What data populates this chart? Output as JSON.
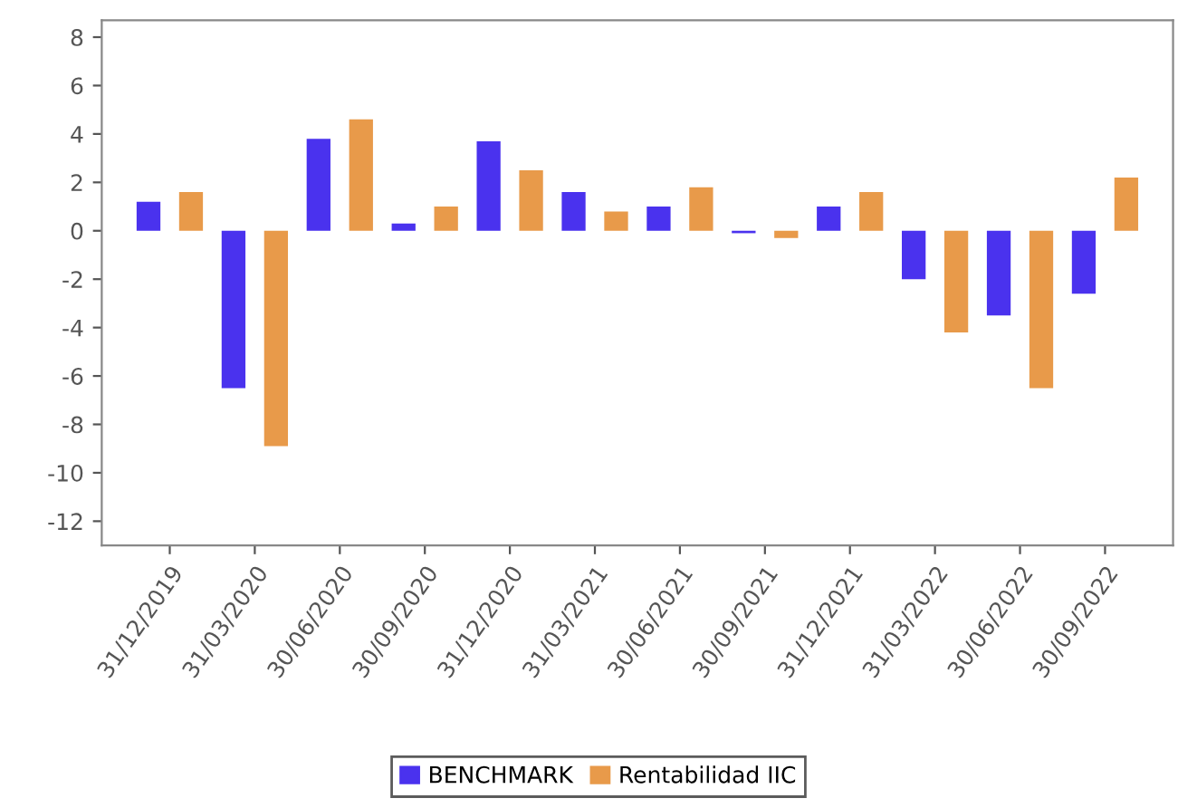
{
  "chart_data": {
    "type": "bar",
    "categories": [
      "31/12/2019",
      "31/03/2020",
      "30/06/2020",
      "30/09/2020",
      "31/12/2020",
      "31/03/2021",
      "30/06/2021",
      "30/09/2021",
      "31/12/2021",
      "31/03/2022",
      "30/06/2022",
      "30/09/2022"
    ],
    "series": [
      {
        "name": "BENCHMARK",
        "color": "#4a32ee",
        "values": [
          1.2,
          -6.5,
          3.8,
          0.3,
          3.7,
          1.6,
          1.0,
          -0.1,
          1.0,
          -2.0,
          -3.5,
          -2.6
        ]
      },
      {
        "name": "Rentabilidad IIC",
        "color": "#e89a4a",
        "values": [
          1.6,
          -8.9,
          4.6,
          1.0,
          2.5,
          0.8,
          1.8,
          -0.3,
          1.6,
          -4.2,
          -6.5,
          2.2
        ]
      }
    ],
    "ylim": [
      -13,
      8.7
    ],
    "yticks": [
      -12,
      -10,
      -8,
      -6,
      -4,
      -2,
      0,
      2,
      4,
      6,
      8
    ],
    "grid": false,
    "legend": "bottom"
  }
}
